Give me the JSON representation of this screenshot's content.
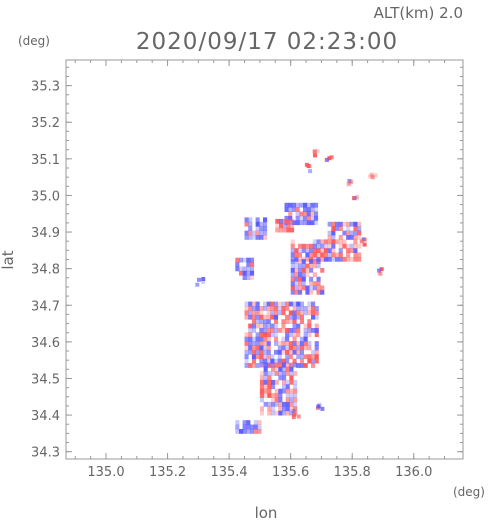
{
  "header": {
    "alt_label": "ALT(km)  2.0",
    "timestamp": "2020/09/17 02:23:00",
    "y_unit": "(deg)",
    "x_unit": "(deg)"
  },
  "colors": {
    "frame": "#999999",
    "text": "#666666",
    "positive": "#ff6b6b",
    "negative": "#6b6bff"
  },
  "chart_data": {
    "type": "heatmap",
    "xlabel": "lon",
    "ylabel": "lat",
    "xlim": [
      134.87,
      136.16
    ],
    "ylim": [
      34.28,
      35.37
    ],
    "xticks": [
      "135.0",
      "135.2",
      "135.4",
      "135.6",
      "135.8",
      "136.0"
    ],
    "yticks": [
      "34.3",
      "34.4",
      "34.5",
      "34.6",
      "34.7",
      "34.8",
      "34.9",
      "35.0",
      "35.1",
      "35.2",
      "35.3"
    ],
    "grid": false,
    "regions": [
      {
        "lon": [
          135.58,
          135.68
        ],
        "lat": [
          34.92,
          34.97
        ],
        "mix": "blue"
      },
      {
        "lon": [
          135.45,
          135.52
        ],
        "lat": [
          34.88,
          34.93
        ],
        "mix": "blue"
      },
      {
        "lon": [
          135.55,
          135.6
        ],
        "lat": [
          34.9,
          34.93
        ],
        "mix": "pink"
      },
      {
        "lon": [
          135.72,
          135.82
        ],
        "lat": [
          34.82,
          34.92
        ],
        "mix": "mixed"
      },
      {
        "lon": [
          135.6,
          135.72
        ],
        "lat": [
          34.82,
          34.88
        ],
        "mix": "mixed"
      },
      {
        "lon": [
          135.6,
          135.7
        ],
        "lat": [
          34.73,
          34.82
        ],
        "mix": "mixed"
      },
      {
        "lon": [
          135.42,
          135.48
        ],
        "lat": [
          34.77,
          34.82
        ],
        "mix": "blue"
      },
      {
        "lon": [
          135.45,
          135.68
        ],
        "lat": [
          34.53,
          34.7
        ],
        "mix": "mixed"
      },
      {
        "lon": [
          135.5,
          135.62
        ],
        "lat": [
          34.4,
          34.54
        ],
        "mix": "mixed"
      },
      {
        "lon": [
          135.42,
          135.5
        ],
        "lat": [
          34.35,
          34.38
        ],
        "mix": "blue"
      }
    ],
    "spots": [
      {
        "lon": 135.68,
        "lat": 35.12,
        "mix": "pink"
      },
      {
        "lon": 135.72,
        "lat": 35.11,
        "mix": "pink"
      },
      {
        "lon": 135.65,
        "lat": 35.08,
        "mix": "pink"
      },
      {
        "lon": 135.78,
        "lat": 35.04,
        "mix": "pink"
      },
      {
        "lon": 135.86,
        "lat": 35.06,
        "mix": "pink"
      },
      {
        "lon": 135.8,
        "lat": 35.0,
        "mix": "pink"
      },
      {
        "lon": 135.83,
        "lat": 34.88,
        "mix": "pink"
      },
      {
        "lon": 135.88,
        "lat": 34.8,
        "mix": "pink"
      },
      {
        "lon": 135.3,
        "lat": 34.77,
        "mix": "blue"
      },
      {
        "lon": 135.61,
        "lat": 34.41,
        "mix": "pink"
      },
      {
        "lon": 135.69,
        "lat": 34.43,
        "mix": "pink"
      }
    ]
  }
}
